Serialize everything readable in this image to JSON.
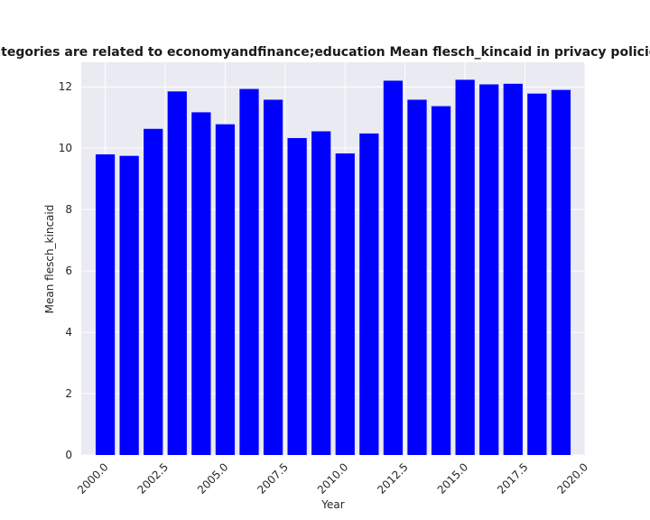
{
  "chart_data": {
    "type": "bar",
    "title": "categories are related to economyandfinance;education Mean flesch_kincaid in privacy policies",
    "xlabel": "Year",
    "ylabel": "Mean flesch_kincaid",
    "x": [
      2000,
      2001,
      2002,
      2003,
      2004,
      2005,
      2006,
      2007,
      2008,
      2009,
      2010,
      2011,
      2012,
      2013,
      2014,
      2015,
      2016,
      2017,
      2018,
      2019
    ],
    "values": [
      9.8,
      9.75,
      10.63,
      11.85,
      11.17,
      10.78,
      11.93,
      11.58,
      10.33,
      10.55,
      9.83,
      10.48,
      12.2,
      11.58,
      11.37,
      12.23,
      12.08,
      12.1,
      11.78,
      11.9
    ],
    "xlim": [
      1999.0,
      2020.0
    ],
    "ylim": [
      0,
      12.8
    ],
    "xticks": [
      "2000.0",
      "2002.5",
      "2005.0",
      "2007.5",
      "2010.0",
      "2012.5",
      "2015.0",
      "2017.5",
      "2020.0"
    ],
    "xtick_values": [
      2000.0,
      2002.5,
      2005.0,
      2007.5,
      2010.0,
      2012.5,
      2015.0,
      2017.5,
      2020.0
    ],
    "yticks": [
      "0",
      "2",
      "4",
      "6",
      "8",
      "10",
      "12"
    ],
    "ytick_values": [
      0,
      2,
      4,
      6,
      8,
      10,
      12
    ],
    "bar_color": "#0000ff",
    "plot_background": "#eaeaf2",
    "grid_color": "#ffffff",
    "grid": true,
    "bar_width": 0.8
  }
}
